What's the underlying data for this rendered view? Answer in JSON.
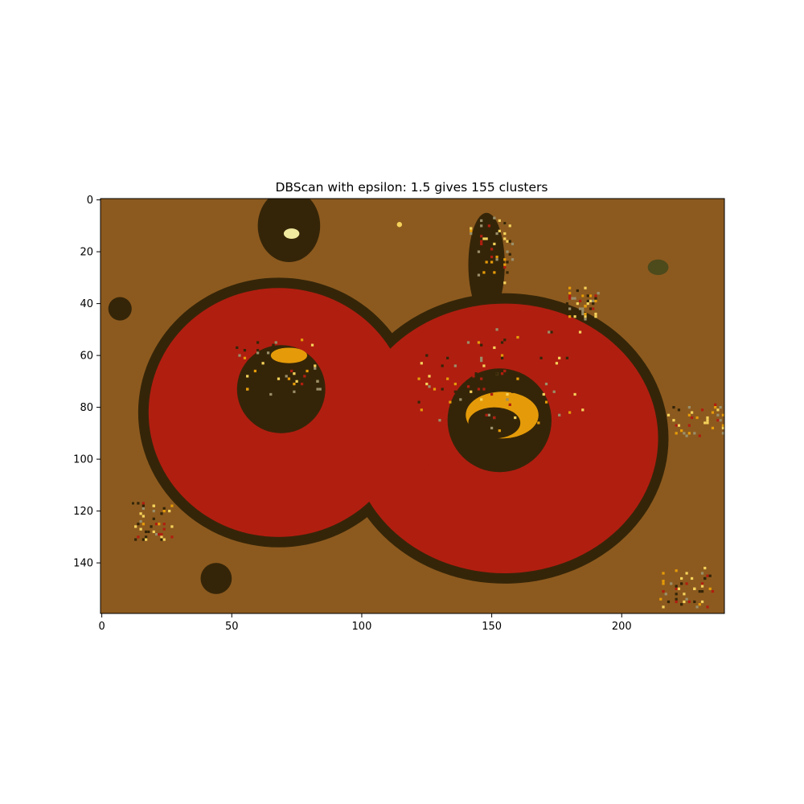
{
  "chart_data": {
    "type": "heatmap",
    "title": "DBScan with epsilon: 1.5 gives 155 clusters",
    "xlabel": "",
    "ylabel": "",
    "image_shape": [
      160,
      240
    ],
    "xlim": [
      -0.5,
      239.5
    ],
    "ylim": [
      159.5,
      -0.5
    ],
    "xticks": [
      0,
      50,
      100,
      150,
      200
    ],
    "yticks": [
      0,
      20,
      40,
      60,
      80,
      100,
      120,
      140
    ],
    "grid": false,
    "palette": {
      "background": "#8c5a1f",
      "petals": "#b01e10",
      "dark": "#352508",
      "orange": "#e59b09",
      "yellow": "#f5d25a",
      "pale": "#f0eaa0",
      "olive": "#4d4a1c",
      "khaki": "#9a8f6a"
    },
    "regions": [
      {
        "label": "left-flower-outline",
        "color": "dark",
        "cx": 68,
        "cy": 82,
        "rx": 54,
        "ry": 52
      },
      {
        "label": "right-flower-outline",
        "color": "dark",
        "cx": 155,
        "cy": 92,
        "rx": 63,
        "ry": 56
      },
      {
        "label": "top-stem",
        "color": "dark",
        "cx": 72,
        "cy": 10,
        "rx": 12,
        "ry": 14
      },
      {
        "label": "top-right-stem",
        "color": "dark",
        "cx": 148,
        "cy": 25,
        "rx": 7,
        "ry": 20
      },
      {
        "label": "left-flower-petals",
        "color": "petals",
        "cx": 68,
        "cy": 82,
        "rx": 50,
        "ry": 48
      },
      {
        "label": "right-flower-petals",
        "color": "petals",
        "cx": 155,
        "cy": 92,
        "rx": 59,
        "ry": 52
      },
      {
        "label": "bridge-petals",
        "color": "petals",
        "cx": 112,
        "cy": 88,
        "rx": 18,
        "ry": 22
      },
      {
        "label": "left-flower-center",
        "color": "dark",
        "cx": 69,
        "cy": 73,
        "rx": 17,
        "ry": 17
      },
      {
        "label": "right-flower-center",
        "color": "dark",
        "cx": 153,
        "cy": 85,
        "rx": 20,
        "ry": 20
      },
      {
        "label": "left-center-highlight",
        "color": "orange",
        "cx": 72,
        "cy": 60,
        "rx": 7,
        "ry": 3
      },
      {
        "label": "right-center-ring",
        "color": "orange",
        "cx": 154,
        "cy": 83,
        "rx": 14,
        "ry": 9
      },
      {
        "label": "right-center-hole",
        "color": "dark",
        "cx": 151,
        "cy": 86,
        "rx": 10,
        "ry": 6
      },
      {
        "label": "left-spot",
        "color": "dark",
        "cx": 7,
        "cy": 42,
        "rx": 4.5,
        "ry": 4.5
      },
      {
        "label": "bottom-spot",
        "color": "dark",
        "cx": 44,
        "cy": 146,
        "rx": 6,
        "ry": 6
      },
      {
        "label": "olive-spot",
        "color": "olive",
        "cx": 214,
        "cy": 26,
        "rx": 4,
        "ry": 3
      },
      {
        "label": "pale-spot-top",
        "color": "pale",
        "cx": 73,
        "cy": 13,
        "rx": 3,
        "ry": 2
      },
      {
        "label": "yellow-dot",
        "color": "yellow",
        "cx": 114.5,
        "cy": 9.5,
        "rx": 1,
        "ry": 1
      }
    ]
  }
}
